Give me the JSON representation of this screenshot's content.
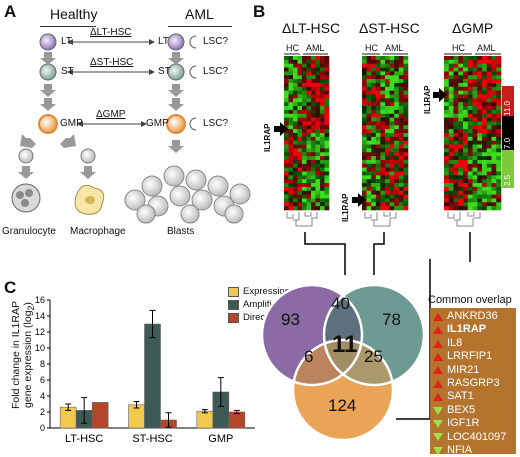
{
  "panelA": {
    "letter": "A",
    "col_healthy": "Healthy",
    "col_aml": "AML",
    "cells_healthy": [
      "LT",
      "ST",
      "GMP"
    ],
    "cells_aml": [
      "LT",
      "ST",
      "GMP"
    ],
    "lsc_labels": [
      "LSC?",
      "LSC?",
      "LSC?"
    ],
    "arrows": [
      "ΔLT-HSC",
      "ΔST-HSC",
      "ΔGMP"
    ],
    "mature": [
      "Granulocyte",
      "Macrophage",
      "Blasts"
    ]
  },
  "panelB": {
    "letter": "B",
    "titles": [
      "ΔLT-HSC",
      "ΔST-HSC",
      "ΔGMP"
    ],
    "sub_hc": "HC",
    "sub_aml": "AML",
    "gene_marker": "IL1RAP",
    "scale": [
      "11.0",
      "7.0",
      "2.5"
    ]
  },
  "panelC": {
    "letter": "C",
    "ylabel_line1": "Fold change in IL1RAP",
    "ylabel_line2": "gene expression (log",
    "ylabel_sub": "2",
    "ylabel_end": ")",
    "legend": [
      {
        "label": "Expression array",
        "color": "#f2c94c"
      },
      {
        "label": "Amplified RNA",
        "color": "#3d5a55"
      },
      {
        "label": "Direct RT-PCR",
        "color": "#b4472a"
      }
    ]
  },
  "venn": {
    "values": [
      "93",
      "40",
      "78",
      "6",
      "11",
      "25",
      "124"
    ],
    "colors": {
      "purple": "#8b6aa6",
      "teal": "#6e9a94",
      "orange": "#e9a458"
    }
  },
  "overlap": {
    "title": "Common overlap",
    "genes": [
      {
        "name": "ANKRD36",
        "dir": "up"
      },
      {
        "name": "IL1RAP",
        "dir": "up",
        "bold": true
      },
      {
        "name": "IL8",
        "dir": "up"
      },
      {
        "name": "LRRFIP1",
        "dir": "up"
      },
      {
        "name": "MIR21",
        "dir": "up"
      },
      {
        "name": "RASGRP3",
        "dir": "up"
      },
      {
        "name": "SAT1",
        "dir": "up"
      },
      {
        "name": "BEX5",
        "dir": "down"
      },
      {
        "name": "IGF1R",
        "dir": "down"
      },
      {
        "name": "LOC401097",
        "dir": "down"
      },
      {
        "name": "NFIA",
        "dir": "down"
      }
    ]
  },
  "chart_data": {
    "type": "bar",
    "categories": [
      "LT-HSC",
      "ST-HSC",
      "GMP"
    ],
    "series": [
      {
        "name": "Expression array",
        "values": [
          2.6,
          2.9,
          2.1
        ],
        "errors": [
          0.4,
          0.4,
          0.2
        ]
      },
      {
        "name": "Amplified RNA",
        "values": [
          2.2,
          13.0,
          4.5
        ],
        "errors": [
          1.6,
          1.7,
          1.8
        ]
      },
      {
        "name": "Direct RT-PCR",
        "values": [
          3.2,
          1.0,
          2.0
        ],
        "errors": [
          0,
          0.9,
          0.2
        ]
      }
    ],
    "ylim": [
      0,
      16
    ],
    "yticks": [
      0,
      2,
      4,
      6,
      8,
      10,
      12,
      14,
      16
    ],
    "ylabel": "Fold change in IL1RAP gene expression (log2)",
    "legend_position": "top-right",
    "grid": false
  }
}
